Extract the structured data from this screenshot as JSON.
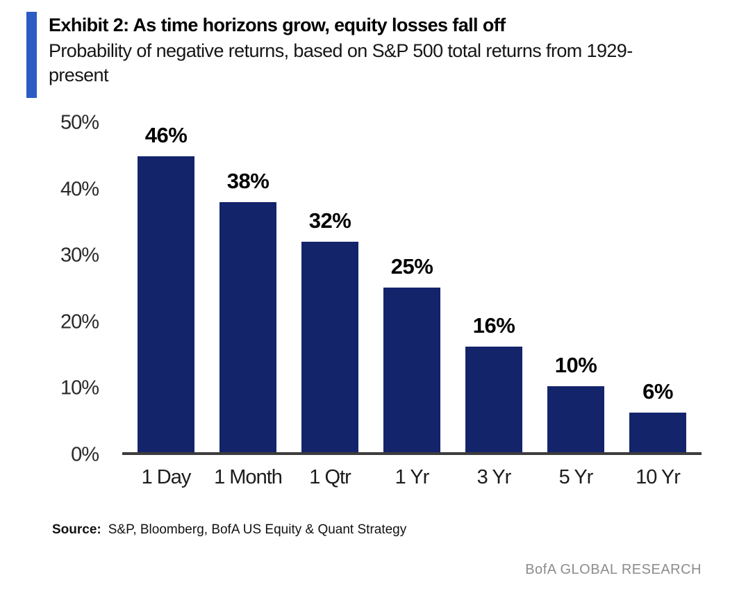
{
  "header": {
    "title": "Exhibit 2: As time horizons grow, equity losses fall off",
    "subtitle": "Probability of negative returns, based on S&P 500 total returns from 1929-present"
  },
  "chart_data": {
    "type": "bar",
    "title": "Exhibit 2: As time horizons grow, equity losses fall off",
    "subtitle": "Probability of negative returns, based on S&P 500 total returns from 1929-present",
    "categories": [
      "1 Day",
      "1 Month",
      "1 Qtr",
      "1 Yr",
      "3 Yr",
      "5 Yr",
      "10 Yr"
    ],
    "values": [
      46,
      38,
      32,
      25,
      16,
      10,
      6
    ],
    "value_labels": [
      "46%",
      "38%",
      "32%",
      "25%",
      "16%",
      "10%",
      "6%"
    ],
    "xlabel": "",
    "ylabel": "",
    "ylim": [
      0,
      50
    ],
    "ytick_values": [
      0,
      10,
      20,
      30,
      40,
      50
    ],
    "ytick_labels": [
      "0%",
      "10%",
      "20%",
      "30%",
      "40%",
      "50%"
    ],
    "grid": false,
    "legend_position": "none",
    "bar_color": "#13246B"
  },
  "footer": {
    "source_label": "Source:",
    "source_text": "S&P, Bloomberg, BofA US Equity & Quant Strategy",
    "branding": "BofA GLOBAL RESEARCH"
  },
  "colors": {
    "bar": "#13246B",
    "accent_bar": "#2B5CC4",
    "axis_line": "#3c3c3c",
    "branding_text": "#8C8C8C"
  }
}
